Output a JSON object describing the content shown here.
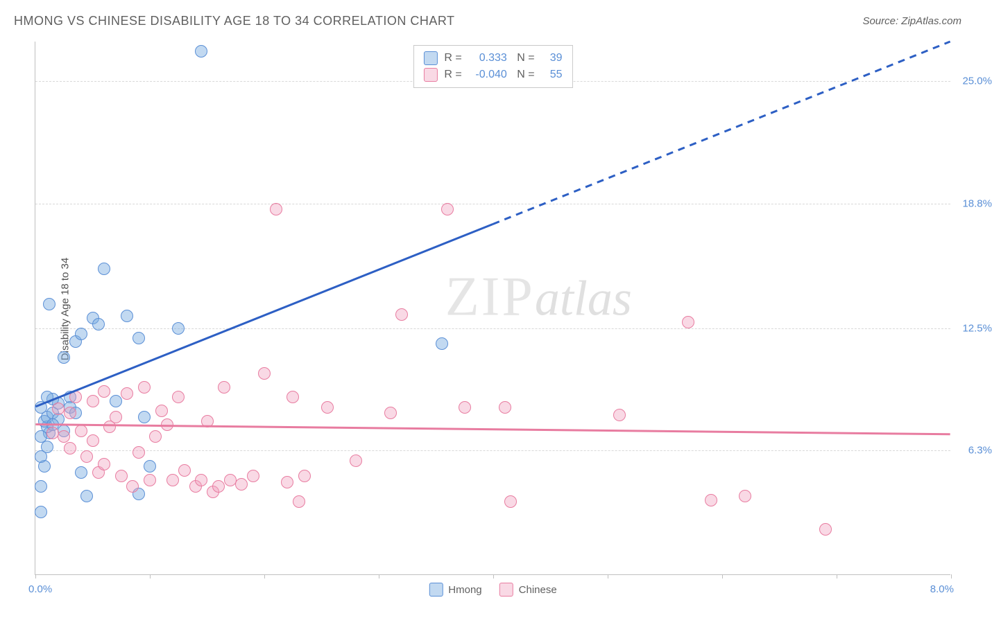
{
  "title": "HMONG VS CHINESE DISABILITY AGE 18 TO 34 CORRELATION CHART",
  "source": "Source: ZipAtlas.com",
  "y_axis_title": "Disability Age 18 to 34",
  "watermark_zip": "ZIP",
  "watermark_atlas": "atlas",
  "chart": {
    "type": "scatter",
    "background_color": "#ffffff",
    "grid_color": "#d8d8d8",
    "axis_color": "#c0c0c0",
    "label_color": "#5a8fd6",
    "text_color": "#606060",
    "title_fontsize": 18,
    "label_fontsize": 15,
    "xlim": [
      0.0,
      8.0
    ],
    "ylim": [
      0.0,
      27.0
    ],
    "x_ticks": [
      0,
      1,
      2,
      3,
      4,
      5,
      6,
      7,
      8
    ],
    "x_start_label": "0.0%",
    "x_end_label": "8.0%",
    "y_gridlines": [
      6.3,
      12.5,
      18.8,
      25.0
    ],
    "y_labels": [
      "6.3%",
      "12.5%",
      "18.8%",
      "25.0%"
    ],
    "marker_radius": 9,
    "marker_opacity": 0.55,
    "series": [
      {
        "name": "Hmong",
        "color": "#5a8fd6",
        "fill": "rgba(120,170,225,0.45)",
        "stroke": "#5a8fd6",
        "R": "0.333",
        "N": "39",
        "trend": {
          "x1": 0.0,
          "y1": 8.5,
          "x2": 8.0,
          "y2": 27.0,
          "solid_until_x": 4.0,
          "width": 3
        },
        "points": [
          [
            0.05,
            3.2
          ],
          [
            0.05,
            4.5
          ],
          [
            0.08,
            5.5
          ],
          [
            0.1,
            6.5
          ],
          [
            0.12,
            7.2
          ],
          [
            0.1,
            7.5
          ],
          [
            0.08,
            7.8
          ],
          [
            0.1,
            8.0
          ],
          [
            0.15,
            8.2
          ],
          [
            0.05,
            8.5
          ],
          [
            0.2,
            8.7
          ],
          [
            0.12,
            13.7
          ],
          [
            0.25,
            11.0
          ],
          [
            0.3,
            9.0
          ],
          [
            0.35,
            11.8
          ],
          [
            0.4,
            12.2
          ],
          [
            0.5,
            13.0
          ],
          [
            0.45,
            4.0
          ],
          [
            0.6,
            15.5
          ],
          [
            0.7,
            8.8
          ],
          [
            0.8,
            13.1
          ],
          [
            0.9,
            12.0
          ],
          [
            0.9,
            4.1
          ],
          [
            0.95,
            8.0
          ],
          [
            1.0,
            5.5
          ],
          [
            1.25,
            12.5
          ],
          [
            1.45,
            26.5
          ],
          [
            3.55,
            11.7
          ],
          [
            0.15,
            8.9
          ],
          [
            0.2,
            7.9
          ],
          [
            0.05,
            7.0
          ],
          [
            0.3,
            8.5
          ],
          [
            0.15,
            7.6
          ],
          [
            0.1,
            9.0
          ],
          [
            0.05,
            6.0
          ],
          [
            0.25,
            7.3
          ],
          [
            0.35,
            8.2
          ],
          [
            0.4,
            5.2
          ],
          [
            0.55,
            12.7
          ]
        ]
      },
      {
        "name": "Chinese",
        "color": "#e87ca0",
        "fill": "rgba(240,160,190,0.40)",
        "stroke": "#e87ca0",
        "R": "-0.040",
        "N": "55",
        "trend": {
          "x1": 0.0,
          "y1": 7.6,
          "x2": 8.0,
          "y2": 7.1,
          "width": 3
        },
        "points": [
          [
            0.2,
            8.4
          ],
          [
            0.25,
            7.0
          ],
          [
            0.3,
            8.2
          ],
          [
            0.35,
            9.0
          ],
          [
            0.4,
            7.3
          ],
          [
            0.45,
            6.0
          ],
          [
            0.5,
            8.8
          ],
          [
            0.55,
            5.2
          ],
          [
            0.6,
            9.3
          ],
          [
            0.65,
            7.5
          ],
          [
            0.7,
            8.0
          ],
          [
            0.75,
            5.0
          ],
          [
            0.8,
            9.2
          ],
          [
            0.85,
            4.5
          ],
          [
            0.9,
            6.2
          ],
          [
            0.95,
            9.5
          ],
          [
            1.0,
            4.8
          ],
          [
            1.05,
            7.0
          ],
          [
            1.1,
            8.3
          ],
          [
            1.15,
            7.6
          ],
          [
            1.2,
            4.8
          ],
          [
            1.25,
            9.0
          ],
          [
            1.3,
            5.3
          ],
          [
            1.4,
            4.5
          ],
          [
            1.45,
            4.8
          ],
          [
            1.5,
            7.8
          ],
          [
            1.55,
            4.2
          ],
          [
            1.6,
            4.5
          ],
          [
            1.65,
            9.5
          ],
          [
            1.7,
            4.8
          ],
          [
            1.8,
            4.6
          ],
          [
            1.9,
            5.0
          ],
          [
            2.0,
            10.2
          ],
          [
            2.1,
            18.5
          ],
          [
            2.2,
            4.7
          ],
          [
            2.25,
            9.0
          ],
          [
            2.3,
            3.7
          ],
          [
            2.35,
            5.0
          ],
          [
            2.55,
            8.5
          ],
          [
            2.8,
            5.8
          ],
          [
            3.1,
            8.2
          ],
          [
            3.2,
            13.2
          ],
          [
            3.6,
            18.5
          ],
          [
            3.75,
            8.5
          ],
          [
            4.1,
            8.5
          ],
          [
            4.15,
            3.7
          ],
          [
            5.1,
            8.1
          ],
          [
            5.7,
            12.8
          ],
          [
            5.9,
            3.8
          ],
          [
            6.9,
            2.3
          ],
          [
            6.2,
            4.0
          ],
          [
            0.15,
            7.2
          ],
          [
            0.3,
            6.4
          ],
          [
            0.5,
            6.8
          ],
          [
            0.6,
            5.6
          ]
        ]
      }
    ],
    "legend_bottom": [
      "Hmong",
      "Chinese"
    ]
  }
}
